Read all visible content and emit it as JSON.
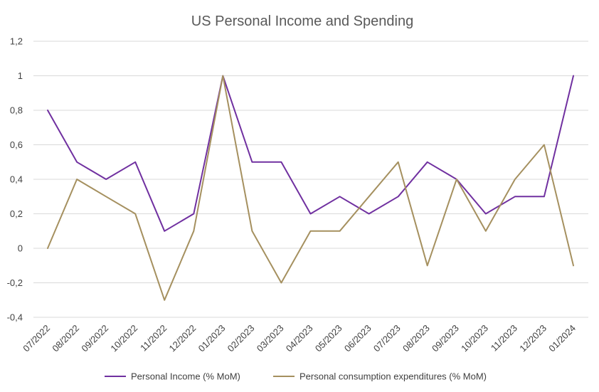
{
  "chart_data": {
    "type": "line",
    "title": "US Personal Income and Spending",
    "xlabel": "",
    "ylabel": "",
    "categories": [
      "07/2022",
      "08/2022",
      "09/2022",
      "10/2022",
      "11/2022",
      "12/2022",
      "01/2023",
      "02/2023",
      "03/2023",
      "04/2023",
      "05/2023",
      "06/2023",
      "07/2023",
      "08/2023",
      "09/2023",
      "10/2023",
      "11/2023",
      "12/2023",
      "01/2024"
    ],
    "ylim": [
      -0.4,
      1.2
    ],
    "yticks": [
      "-0,4",
      "-0,2",
      "0",
      "0,2",
      "0,4",
      "0,6",
      "0,8",
      "1",
      "1,2"
    ],
    "ytick_values": [
      -0.4,
      -0.2,
      0,
      0.2,
      0.4,
      0.6,
      0.8,
      1.0,
      1.2
    ],
    "grid": true,
    "legend_position": "bottom",
    "series": [
      {
        "name": "Personal Income (% MoM)",
        "color": "#7030a0",
        "values": [
          0.8,
          0.5,
          0.4,
          0.5,
          0.1,
          0.2,
          1.0,
          0.5,
          0.5,
          0.2,
          0.3,
          0.2,
          0.3,
          0.5,
          0.4,
          0.2,
          0.3,
          0.3,
          1.0
        ]
      },
      {
        "name": "Personal consumption expenditures (% MoM)",
        "color": "#a5905f",
        "values": [
          0.0,
          0.4,
          0.3,
          0.2,
          -0.3,
          0.1,
          1.0,
          0.1,
          -0.2,
          0.1,
          0.1,
          0.3,
          0.5,
          -0.1,
          0.4,
          0.1,
          0.4,
          0.6,
          -0.1
        ]
      }
    ]
  }
}
